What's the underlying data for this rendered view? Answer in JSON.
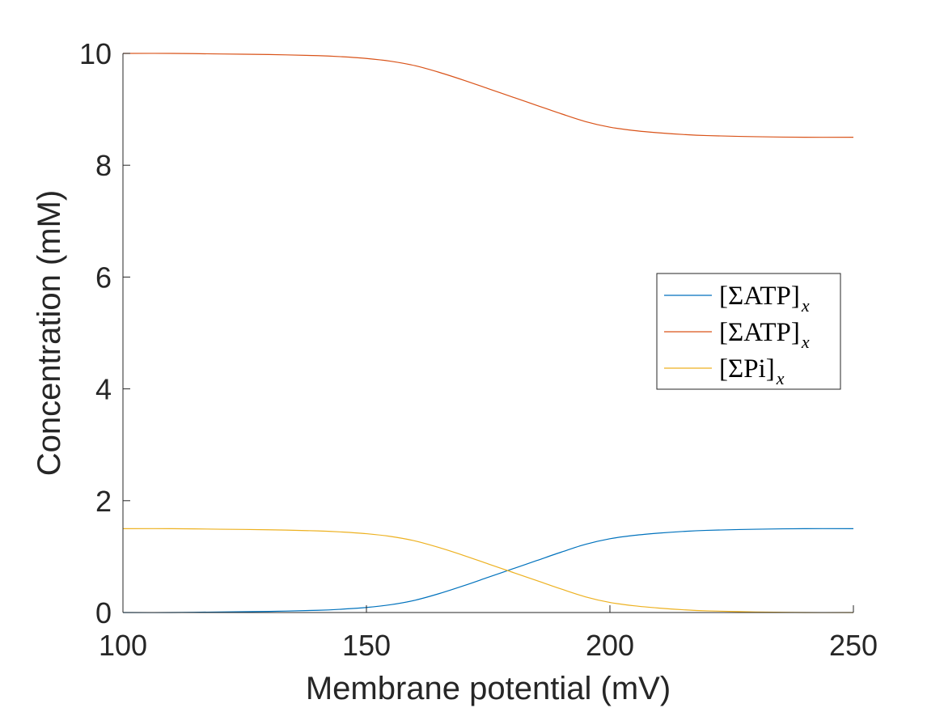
{
  "chart_data": {
    "type": "line",
    "title": "",
    "xlabel": "Membrane potential (mV)",
    "ylabel": "Concentration (mM)",
    "xlim": [
      100,
      250
    ],
    "ylim": [
      0,
      10
    ],
    "xticks": [
      100,
      150,
      200,
      250
    ],
    "yticks": [
      0,
      2,
      4,
      6,
      8,
      10
    ],
    "grid": false,
    "legend_position": "right",
    "x": [
      100,
      110,
      120,
      130,
      140,
      145,
      150,
      155,
      160,
      165,
      170,
      175,
      180,
      185,
      190,
      195,
      200,
      205,
      210,
      215,
      220,
      230,
      240,
      250
    ],
    "series": [
      {
        "name": "[ΣATP]x",
        "legend": {
          "main": "[ΣATP]",
          "sub": "x"
        },
        "color": "#0072BD",
        "values": [
          0.0,
          0.0,
          0.01,
          0.02,
          0.04,
          0.06,
          0.09,
          0.14,
          0.22,
          0.34,
          0.48,
          0.63,
          0.78,
          0.93,
          1.08,
          1.22,
          1.32,
          1.38,
          1.42,
          1.45,
          1.47,
          1.49,
          1.5,
          1.5
        ]
      },
      {
        "name": "[ΣATP]x",
        "legend": {
          "main": "[ΣATP]",
          "sub": "x"
        },
        "color": "#D95319",
        "values": [
          10.0,
          10.0,
          9.99,
          9.98,
          9.96,
          9.94,
          9.91,
          9.86,
          9.78,
          9.66,
          9.52,
          9.37,
          9.22,
          9.07,
          8.92,
          8.78,
          8.68,
          8.62,
          8.58,
          8.55,
          8.53,
          8.51,
          8.5,
          8.5
        ]
      },
      {
        "name": "[ΣPi]x",
        "legend": {
          "main": "[ΣPi]",
          "sub": "x"
        },
        "color": "#EDB120",
        "values": [
          1.5,
          1.5,
          1.49,
          1.48,
          1.46,
          1.44,
          1.41,
          1.36,
          1.28,
          1.16,
          1.02,
          0.87,
          0.72,
          0.57,
          0.42,
          0.28,
          0.18,
          0.12,
          0.08,
          0.05,
          0.03,
          0.01,
          0.0,
          0.0
        ]
      }
    ]
  }
}
